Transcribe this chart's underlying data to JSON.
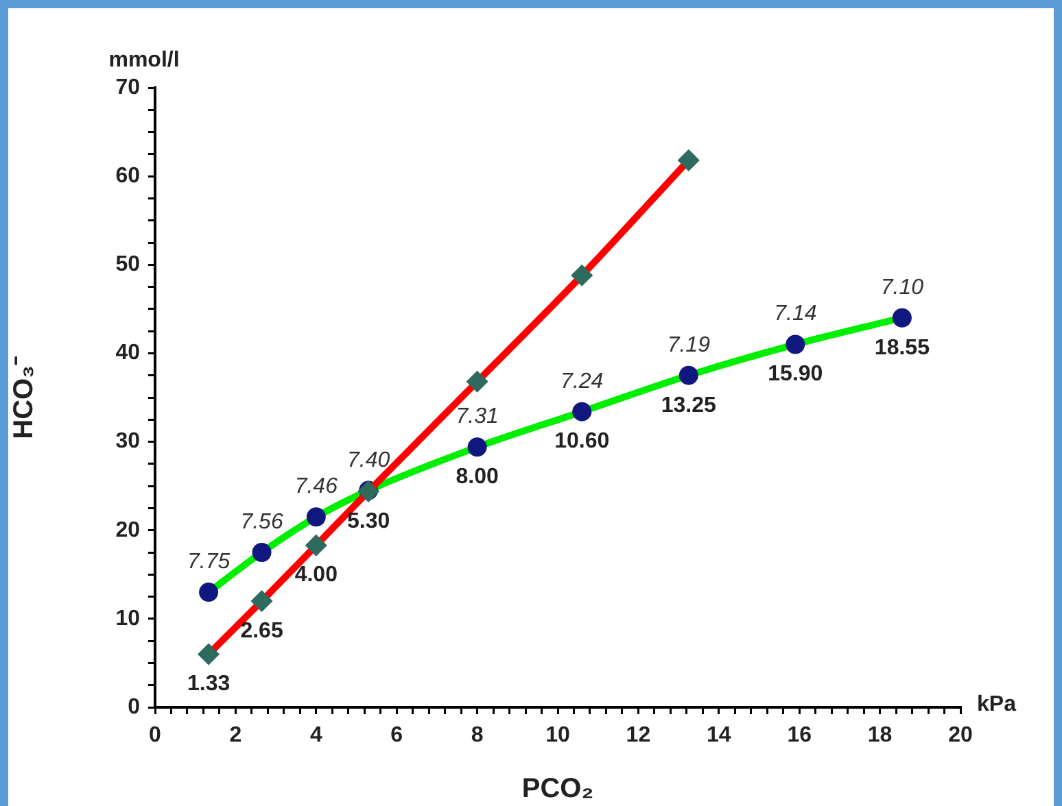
{
  "chart_data": {
    "type": "line",
    "xlabel": "PCO₂",
    "ylabel": "HCO₃⁻",
    "xlim": [
      0,
      20
    ],
    "ylim": [
      0,
      70
    ],
    "xticks": [
      0,
      {
        "value": 0.4,
        "label": null
      },
      {
        "value": 0.8,
        "label": null
      },
      {
        "value": 1.2,
        "label": null
      },
      {
        "value": 1.6,
        "label": null
      },
      2,
      {
        "value": 2.4,
        "label": null
      },
      {
        "value": 2.8,
        "label": null
      },
      {
        "value": 3.2,
        "label": null
      },
      {
        "value": 3.6,
        "label": null
      },
      4,
      {
        "value": 4.4,
        "label": null
      },
      {
        "value": 4.8,
        "label": null
      },
      {
        "value": 5.2,
        "label": null
      },
      {
        "value": 5.6,
        "label": null
      },
      6,
      {
        "value": 6.4,
        "label": null
      },
      {
        "value": 6.8,
        "label": null
      },
      {
        "value": 7.2,
        "label": null
      },
      {
        "value": 7.6,
        "label": null
      },
      8,
      {
        "value": 8.4,
        "label": null
      },
      {
        "value": 8.8,
        "label": null
      },
      {
        "value": 9.2,
        "label": null
      },
      {
        "value": 9.6,
        "label": null
      },
      10,
      {
        "value": 10.4,
        "label": null
      },
      {
        "value": 10.8,
        "label": null
      },
      {
        "value": 11.2,
        "label": null
      },
      {
        "value": 11.6,
        "label": null
      },
      12,
      {
        "value": 12.4,
        "label": null
      },
      {
        "value": 12.8,
        "label": null
      },
      {
        "value": 13.2,
        "label": null
      },
      {
        "value": 13.6,
        "label": null
      },
      14,
      {
        "value": 14.4,
        "label": null
      },
      {
        "value": 14.8,
        "label": null
      },
      {
        "value": 15.2,
        "label": null
      },
      {
        "value": 15.6,
        "label": null
      },
      16,
      {
        "value": 16.4,
        "label": null
      },
      {
        "value": 16.8,
        "label": null
      },
      {
        "value": 17.2,
        "label": null
      },
      {
        "value": 17.6,
        "label": null
      },
      18,
      {
        "value": 18.4,
        "label": null
      },
      {
        "value": 18.8,
        "label": null
      },
      {
        "value": 19.2,
        "label": null
      },
      {
        "value": 19.6,
        "label": null
      },
      20
    ],
    "yticks": [
      0,
      {
        "value": 2.5,
        "label": null
      },
      {
        "value": 5,
        "label": null
      },
      {
        "value": 7.5,
        "label": null
      },
      10,
      {
        "value": 12.5,
        "label": null
      },
      {
        "value": 15,
        "label": null
      },
      {
        "value": 17.5,
        "label": null
      },
      20,
      {
        "value": 22.5,
        "label": null
      },
      {
        "value": 25,
        "label": null
      },
      {
        "value": 27.5,
        "label": null
      },
      30,
      {
        "value": 32.5,
        "label": null
      },
      {
        "value": 35,
        "label": null
      },
      {
        "value": 37.5,
        "label": null
      },
      40,
      {
        "value": 42.5,
        "label": null
      },
      {
        "value": 45,
        "label": null
      },
      {
        "value": 47.5,
        "label": null
      },
      50,
      {
        "value": 52.5,
        "label": null
      },
      {
        "value": 55,
        "label": null
      },
      {
        "value": 57.5,
        "label": null
      },
      60,
      {
        "value": 62.5,
        "label": null
      },
      {
        "value": 65,
        "label": null
      },
      {
        "value": 67.5,
        "label": null
      },
      70
    ],
    "grid": false,
    "legend": false,
    "series": [
      {
        "color": "#ff0000",
        "marker": "diamond",
        "x": [
          1.33,
          2.65,
          4.0,
          5.3,
          8.0,
          10.6,
          13.25
        ],
        "values": [
          6,
          12,
          18.3,
          24.4,
          36.8,
          48.8,
          61.8
        ]
      },
      {
        "color": "#00ee00",
        "marker": "circle",
        "x": [
          1.33,
          2.65,
          4.0,
          5.3,
          8.0,
          10.6,
          13.25,
          15.9,
          18.55
        ],
        "values": [
          13,
          17.5,
          21.5,
          24.5,
          29.4,
          33.4,
          37.5,
          41,
          44
        ]
      }
    ],
    "annotations": [
      "mmol/l",
      "kPa",
      {
        "text": "7.75",
        "x": 1.33,
        "y": 13
      },
      {
        "text": "7.56",
        "x": 2.65,
        "y": 17.5
      },
      {
        "text": "7.46",
        "x": 4.0,
        "y": 21.5
      },
      {
        "text": "7.40",
        "x": 5.3,
        "y": 24.5
      },
      {
        "text": "7.31",
        "x": 8.0,
        "y": 29.4
      },
      {
        "text": "7.24",
        "x": 10.6,
        "y": 33.4
      },
      {
        "text": "7.19",
        "x": 13.25,
        "y": 37.5
      },
      {
        "text": "7.14",
        "x": 15.9,
        "y": 41
      },
      {
        "text": "7.10",
        "x": 18.55,
        "y": 44
      },
      {
        "text": "1.33",
        "x": 1.33,
        "y": 6
      },
      {
        "text": "2.65",
        "x": 2.65,
        "y": 12
      },
      {
        "text": "4.00",
        "x": 4.0,
        "y": 18.3
      },
      {
        "text": "5.30",
        "x": 5.3,
        "y": 24.4
      },
      {
        "text": "8.00",
        "x": 8.0,
        "y": 29.4
      },
      {
        "text": "10.60",
        "x": 10.6,
        "y": 33.4
      },
      {
        "text": "13.25",
        "x": 13.25,
        "y": 37.5
      },
      {
        "text": "15.90",
        "x": 15.9,
        "y": 41
      },
      {
        "text": "18.55",
        "x": 18.55,
        "y": 44
      }
    ]
  }
}
